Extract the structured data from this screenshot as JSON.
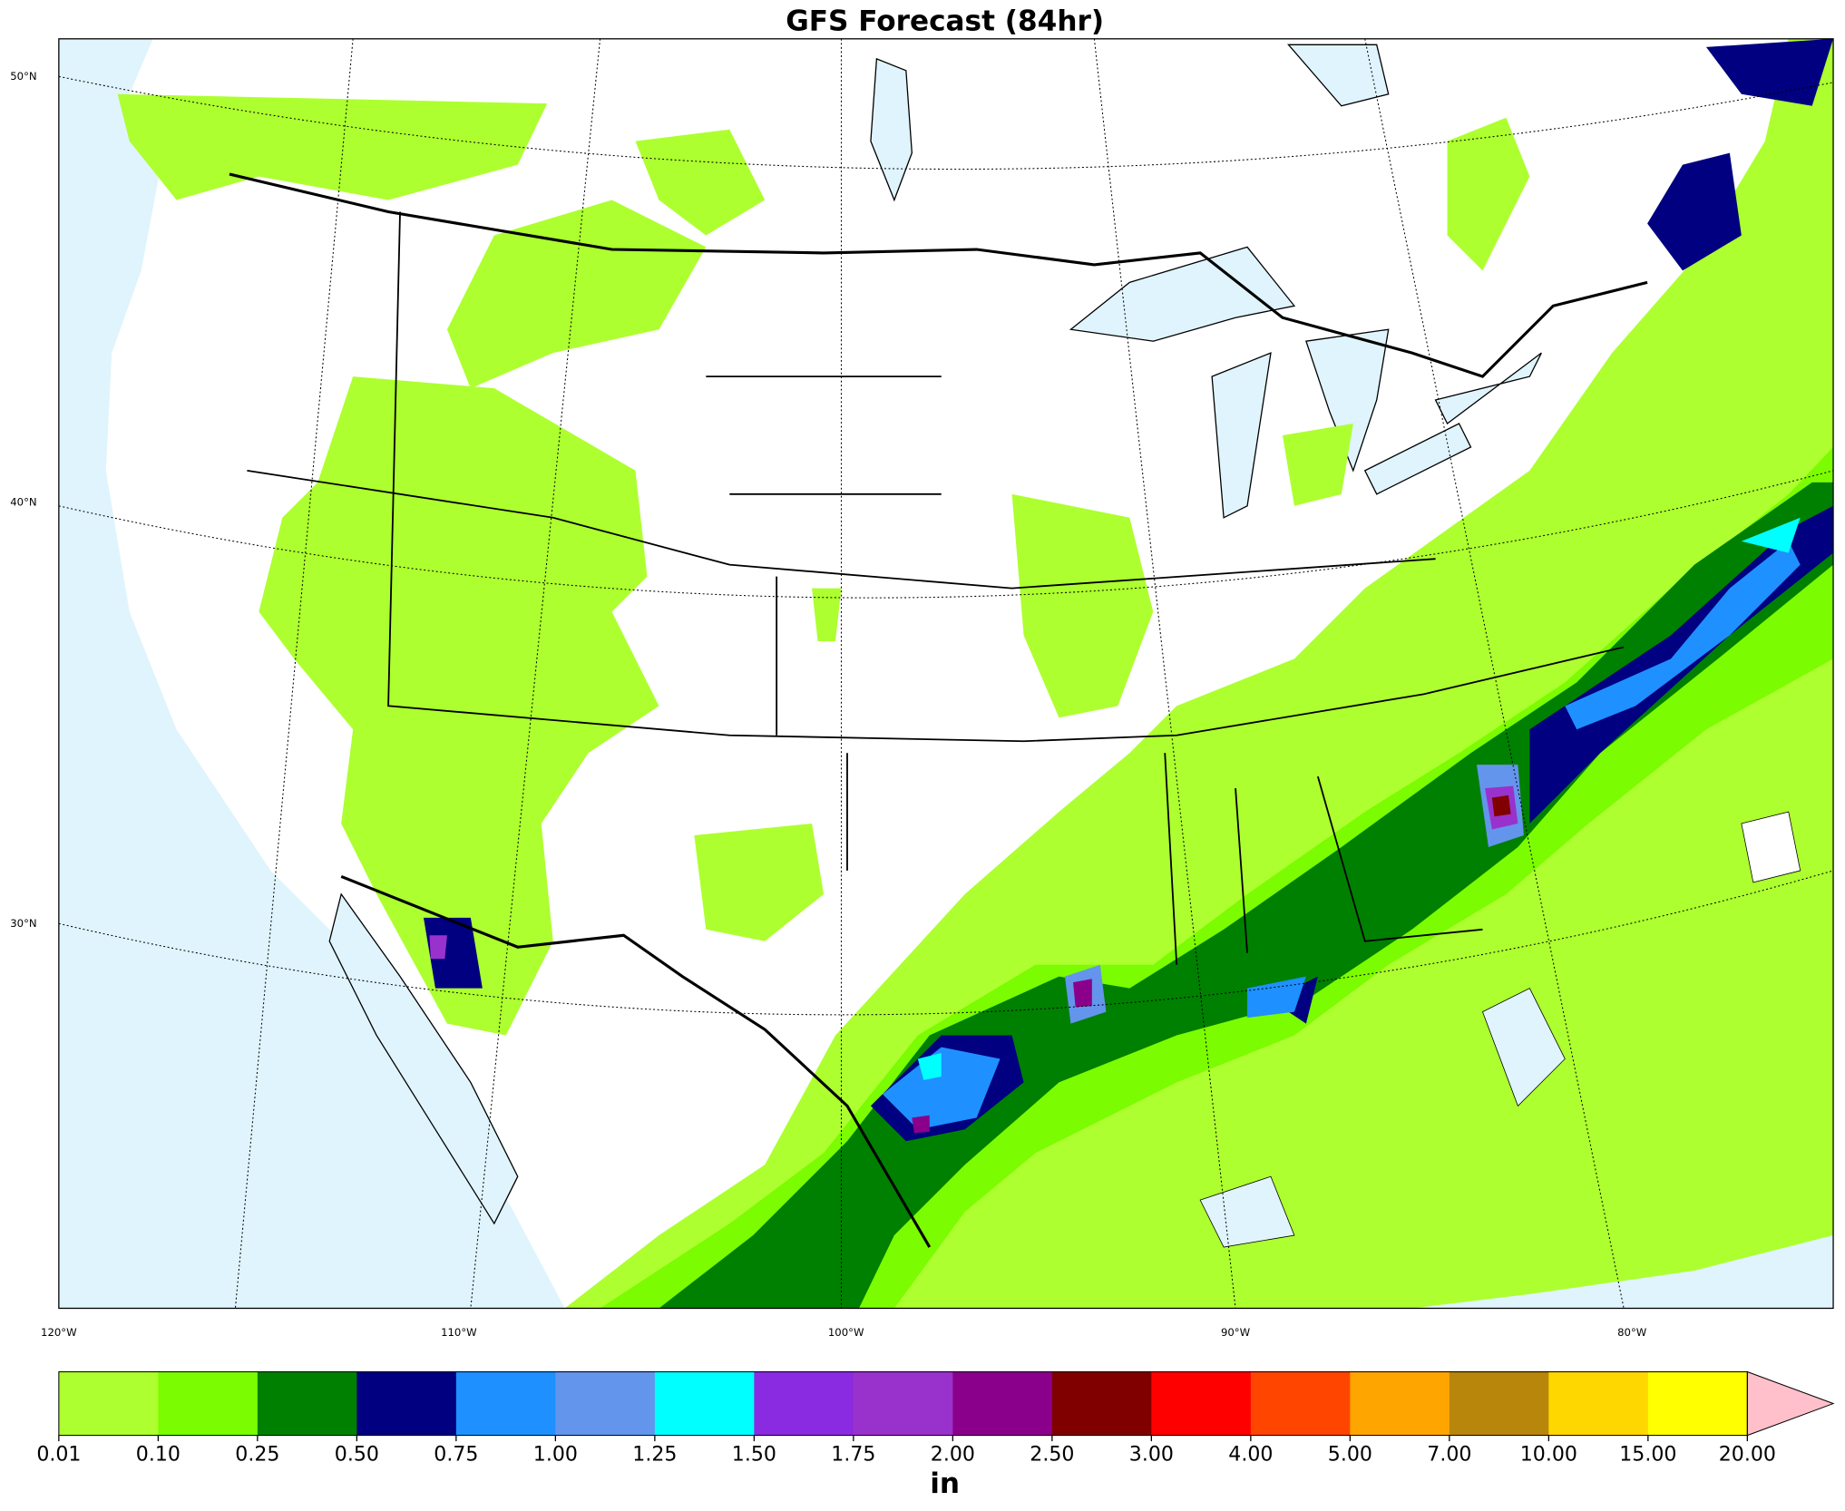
{
  "title": "GFS Forecast (84hr)",
  "map": {
    "lat_labels": [
      "50°N",
      "40°N",
      "30°N"
    ],
    "lon_labels": [
      "120°W",
      "110°W",
      "100°W",
      "90°W",
      "80°W"
    ]
  },
  "colorbar": {
    "levels": [
      0.01,
      {
        "value": 0.1,
        "label": "0.10"
      },
      0.25,
      {
        "value": 0.5,
        "label": "0.50"
      },
      0.75,
      {
        "value": 1,
        "label": "1.00"
      },
      1.25,
      {
        "value": 1.5,
        "label": "1.50"
      },
      1.75,
      {
        "value": 2,
        "label": "2.00"
      },
      {
        "value": 2.5,
        "label": "2.50"
      },
      {
        "value": 3,
        "label": "3.00"
      },
      {
        "value": 4,
        "label": "4.00"
      },
      {
        "value": 5,
        "label": "5.00"
      },
      {
        "value": 7,
        "label": "7.00"
      },
      {
        "value": 10,
        "label": "10.00"
      },
      {
        "value": 15,
        "label": "15.00"
      },
      {
        "value": 20,
        "label": "20.00"
      }
    ],
    "colors": [
      "#adff2f",
      "#7cfc00",
      "#008000",
      "#000080",
      "#1e90ff",
      "#6495ed",
      "#00ffff",
      "#8a2be2",
      "#9932cc",
      "#8b008b",
      "#800000",
      "#ff0000",
      "#ff4500",
      "#ffa500",
      "#b8860b",
      "#ffd700",
      "#ffff00"
    ],
    "over_color": "#ffc0cb",
    "unit": "in"
  }
}
